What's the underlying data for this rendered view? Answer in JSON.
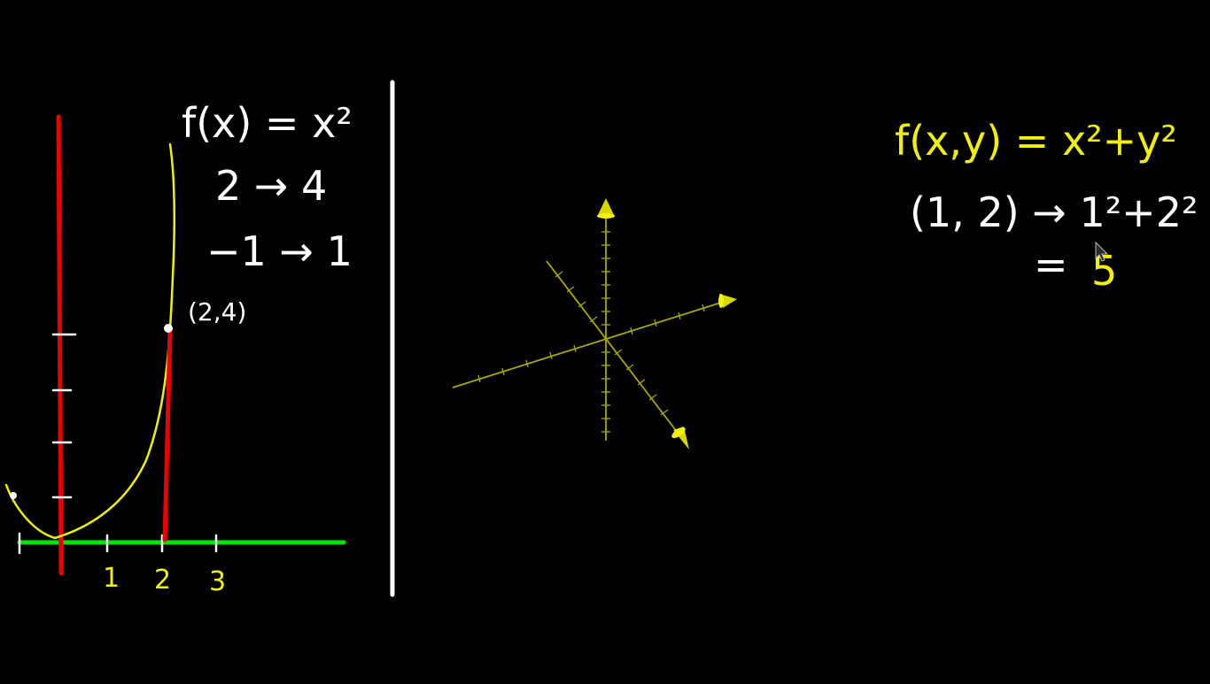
{
  "colors": {
    "background": "#000000",
    "chalk_white": "#ffffff",
    "yellow": "#f2f200",
    "red": "#ee0000",
    "green": "#00e600",
    "olive_axes": "#a8a800"
  },
  "left_panel": {
    "function_label": "f(x) = x²",
    "mapping_1": "2 → 4",
    "mapping_2": "−1 → 1",
    "point_label": "(2,4)",
    "x_tick_labels": [
      "1",
      "2",
      "3"
    ]
  },
  "right_panel": {
    "function_label": "f(x,y) = x²+y²",
    "evaluation_line": "(1, 2) → 1²+2²",
    "result_line_eq": "=",
    "result_line_value": "5"
  }
}
